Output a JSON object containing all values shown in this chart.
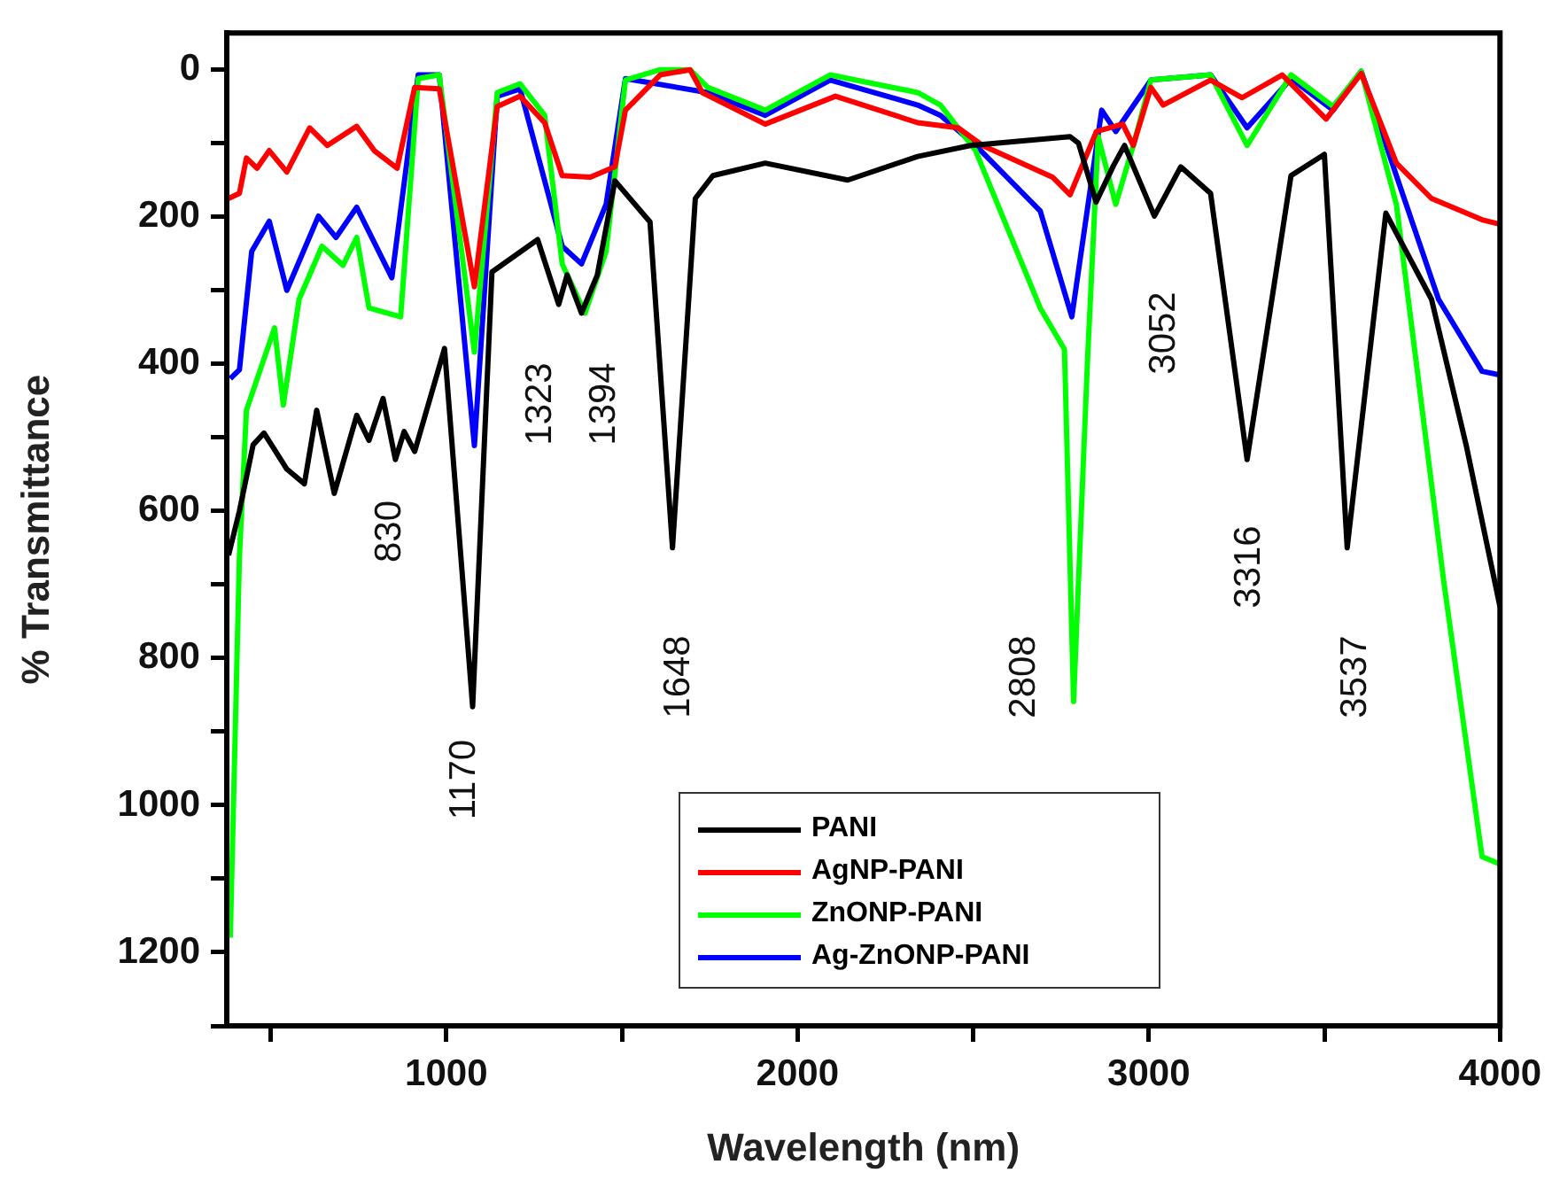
{
  "chart_data": {
    "type": "line",
    "xlabel": "Wavelength (nm)",
    "ylabel": "% Transmittance",
    "xlim": [
      375,
      4000
    ],
    "xticks": [
      {
        "value": 500,
        "label": null
      },
      1000,
      {
        "value": 1500,
        "label": null
      },
      2000,
      {
        "value": 2500,
        "label": null
      },
      3000,
      {
        "value": 3500,
        "label": null
      },
      4000
    ],
    "ylim": [
      1300,
      -50
    ],
    "yticks": [
      0,
      {
        "value": 100,
        "label": null
      },
      200,
      {
        "value": 300,
        "label": null
      },
      400,
      {
        "value": 500,
        "label": null
      },
      600,
      {
        "value": 700,
        "label": null
      },
      800,
      {
        "value": 900,
        "label": null
      },
      1000,
      {
        "value": 1100,
        "label": null
      },
      1200,
      {
        "value": 1300,
        "label": null
      }
    ],
    "grid": false,
    "legend": "bottom",
    "marker": "none",
    "line_style": "solid",
    "series": [
      {
        "name": "PANI",
        "color": "#000000",
        "x": [
          380,
          411,
          450,
          481,
          546,
          596,
          631,
          681,
          745,
          780,
          820,
          855,
          880,
          910,
          995,
          1075,
          1130,
          1260,
          1320,
          1344,
          1385,
          1430,
          1480,
          1580,
          1644,
          1709,
          1759,
          1908,
          2143,
          2342,
          2492,
          2776,
          2800,
          2850,
          2900,
          2931,
          3016,
          3091,
          3176,
          3280,
          3405,
          3500,
          3565,
          3675,
          3805,
          3904,
          4000
        ],
        "values": [
          660,
          600,
          510,
          494,
          543,
          563,
          463,
          576,
          470,
          504,
          447,
          530,
          492,
          519,
          379,
          866,
          275,
          231,
          319,
          279,
          331,
          279,
          151,
          207,
          650,
          175,
          144,
          127,
          150,
          118,
          103,
          91,
          100,
          180,
          130,
          103,
          199,
          132,
          168,
          530,
          144,
          115,
          650,
          195,
          312,
          511,
          730
        ]
      },
      {
        "name": "AgNP-PANI",
        "color": "#ff0000",
        "x": [
          380,
          411,
          431,
          461,
          496,
          546,
          611,
          661,
          745,
          795,
          860,
          910,
          980,
          1080,
          1145,
          1210,
          1280,
          1330,
          1410,
          1480,
          1510,
          1609,
          1694,
          1729,
          1908,
          2108,
          2342,
          2457,
          2527,
          2726,
          2776,
          2851,
          2926,
          2956,
          3006,
          3041,
          3176,
          3266,
          3380,
          3505,
          3605,
          3705,
          3805,
          3949,
          4000
        ],
        "values": [
          175,
          168,
          120,
          134,
          110,
          139,
          79,
          103,
          77,
          110,
          134,
          24,
          26,
          295,
          50,
          36,
          72,
          144,
          146,
          132,
          55,
          7,
          0,
          31,
          74,
          36,
          72,
          79,
          103,
          146,
          170,
          84,
          74,
          103,
          24,
          48,
          14,
          38,
          7,
          67,
          5,
          127,
          175,
          204,
          210
        ]
      },
      {
        "name": "ZnONP-PANI",
        "color": "#00ff00",
        "x": [
          385,
          411,
          431,
          511,
          536,
          581,
          646,
          706,
          745,
          780,
          870,
          920,
          980,
          1080,
          1145,
          1210,
          1280,
          1330,
          1395,
          1455,
          1510,
          1609,
          1694,
          1744,
          1908,
          2093,
          2342,
          2407,
          2507,
          2691,
          2760,
          2786,
          2826,
          2856,
          2906,
          2956,
          3006,
          3176,
          3280,
          3405,
          3525,
          3605,
          3705,
          3840,
          3949,
          4000
        ],
        "values": [
          1180,
          662,
          463,
          351,
          456,
          312,
          240,
          266,
          228,
          324,
          336,
          12,
          7,
          384,
          31,
          19,
          62,
          264,
          331,
          247,
          14,
          0,
          0,
          24,
          55,
          7,
          31,
          48,
          110,
          324,
          380,
          859,
          391,
          91,
          183,
          103,
          14,
          7,
          103,
          7,
          50,
          2,
          183,
          696,
          1070,
          1080
        ]
      },
      {
        "name": "Ag-ZnONP-PANI",
        "color": "#0000ff",
        "x": [
          385,
          411,
          446,
          496,
          546,
          636,
          686,
          745,
          845,
          920,
          980,
          1080,
          1145,
          1210,
          1330,
          1385,
          1455,
          1510,
          1744,
          1908,
          2093,
          2342,
          2407,
          2507,
          2691,
          2781,
          2866,
          2906,
          3006,
          3176,
          3280,
          3405,
          3525,
          3605,
          3705,
          3825,
          3949,
          4000
        ],
        "values": [
          420,
          408,
          247,
          206,
          300,
          199,
          228,
          187,
          283,
          7,
          7,
          511,
          36,
          26,
          240,
          264,
          183,
          12,
          31,
          62,
          14,
          48,
          62,
          103,
          192,
          336,
          55,
          84,
          14,
          7,
          79,
          12,
          55,
          2,
          144,
          312,
          410,
          415
        ]
      }
    ],
    "annotations": [
      "830",
      "1170",
      "1323",
      "1394",
      "1648",
      "2808",
      "3052",
      "3316",
      "3537"
    ]
  }
}
